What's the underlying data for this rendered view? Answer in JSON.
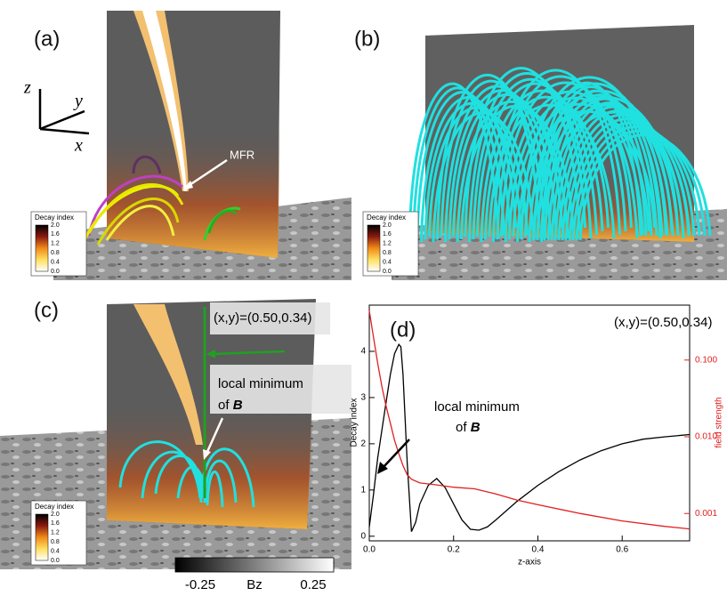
{
  "panels": [
    {
      "label": "(a)",
      "annotation": "MFR",
      "axes": [
        "z",
        "y",
        "x"
      ],
      "colorbar": {
        "title": "Decay index",
        "ticks": [
          "2.0",
          "1.6",
          "1.2",
          "0.8",
          "0.4",
          "0.0"
        ]
      }
    },
    {
      "label": "(b)",
      "colorbar": {
        "title": "Decay index",
        "ticks": [
          "2.0",
          "1.6",
          "1.2",
          "0.8",
          "0.4",
          "0.0"
        ]
      }
    },
    {
      "label": "(c)",
      "annotations": [
        "(x,y)=(0.50,0.34)",
        "local minimum",
        "of",
        "B"
      ],
      "colorbar": {
        "title": "Decay index",
        "ticks": [
          "2.0",
          "1.6",
          "1.2",
          "0.8",
          "0.4",
          "0.0"
        ]
      }
    }
  ],
  "bz_colorbar": {
    "min_label": "-0.25",
    "title": "Bz",
    "max_label": "0.25"
  },
  "chart_data": {
    "type": "line",
    "panel_label": "(d)",
    "annotation": "(x,y)=(0.50,0.34)",
    "annotation_lines": [
      "local minimum",
      "of",
      "B"
    ],
    "xlabel": "z-axis",
    "ylabel": "Decay index",
    "y2label": "field strength",
    "xlim": [
      0,
      0.76
    ],
    "ylim": [
      -0.1,
      5.0
    ],
    "y2lim": [
      0.00044,
      0.52
    ],
    "y2scale": "log",
    "xticks": [
      {
        "value": 0,
        "label": "0.0"
      },
      {
        "value": 0.2,
        "label": "0.2"
      },
      {
        "value": 0.4,
        "label": "0.4"
      },
      {
        "value": 0.6,
        "label": "0.6"
      }
    ],
    "yticks": [
      0,
      1,
      2,
      3,
      4
    ],
    "y2ticks": [
      {
        "value": 0.001,
        "label": "0.001"
      },
      {
        "value": 0.01,
        "label": "0.010"
      },
      {
        "value": 0.1,
        "label": "0.100"
      }
    ],
    "series": [
      {
        "color": "#000000",
        "x": [
          0,
          0.01,
          0.02,
          0.03,
          0.04,
          0.05,
          0.06,
          0.07,
          0.075,
          0.08,
          0.09,
          0.1,
          0.11,
          0.12,
          0.14,
          0.16,
          0.18,
          0.2,
          0.22,
          0.24,
          0.26,
          0.28,
          0.3,
          0.35,
          0.4,
          0.45,
          0.5,
          0.55,
          0.6,
          0.65,
          0.7,
          0.76
        ],
        "values": [
          0.2,
          0.9,
          1.7,
          2.3,
          2.9,
          3.5,
          3.95,
          4.15,
          4.1,
          3.5,
          1.6,
          0.1,
          0.3,
          0.7,
          1.1,
          1.25,
          1.05,
          0.7,
          0.35,
          0.15,
          0.13,
          0.2,
          0.35,
          0.75,
          1.1,
          1.4,
          1.65,
          1.85,
          2.0,
          2.1,
          2.15,
          2.2
        ]
      },
      {
        "color": "#e02020",
        "axis": "y2",
        "x": [
          0,
          0.01,
          0.02,
          0.03,
          0.04,
          0.05,
          0.06,
          0.07,
          0.08,
          0.09,
          0.1,
          0.12,
          0.15,
          0.2,
          0.25,
          0.3,
          0.35,
          0.4,
          0.5,
          0.6,
          0.7,
          0.76
        ],
        "values": [
          0.44,
          0.2,
          0.09,
          0.045,
          0.025,
          0.015,
          0.009,
          0.006,
          0.0042,
          0.0032,
          0.0028,
          0.0025,
          0.0024,
          0.0022,
          0.0021,
          0.0018,
          0.0015,
          0.0013,
          0.001,
          0.0008,
          0.00068,
          0.00063
        ]
      }
    ]
  }
}
